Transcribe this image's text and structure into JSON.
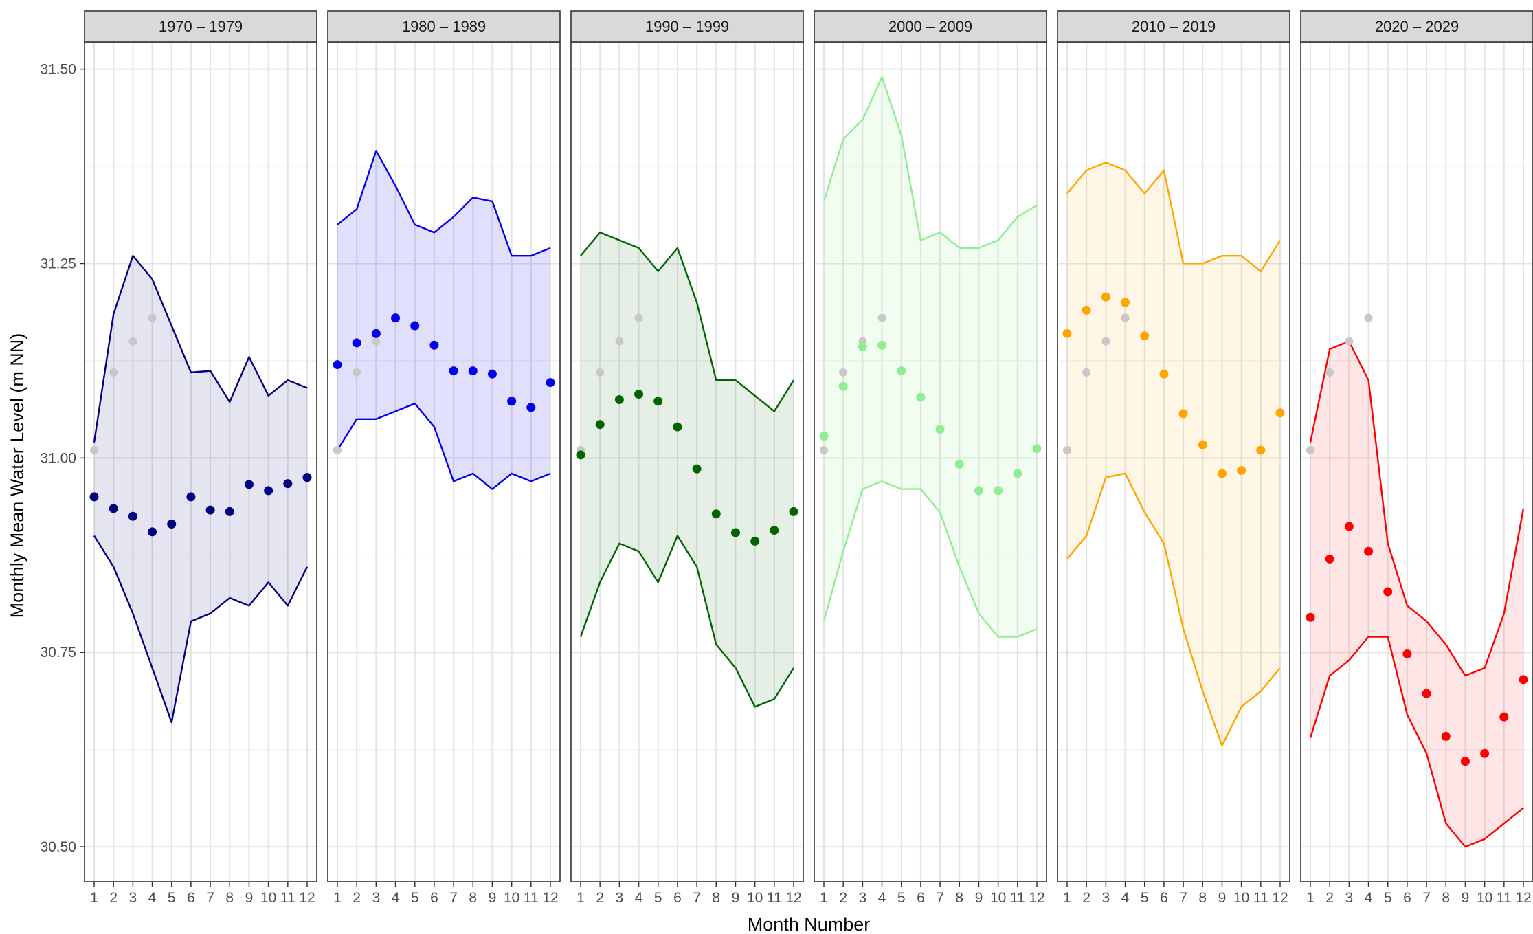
{
  "chart_data": {
    "type": "line",
    "xlabel": "Month Number",
    "ylabel": "Monthly Mean Water Level (m NN)",
    "ylim": [
      30.455,
      31.535
    ],
    "y_ticks": [
      30.5,
      30.75,
      31.0,
      31.25,
      31.5
    ],
    "y_tick_labels": [
      "30.50",
      "30.75",
      "31.00",
      "31.25",
      "31.50"
    ],
    "x_ticks": [
      1,
      2,
      3,
      4,
      5,
      6,
      7,
      8,
      9,
      10,
      11,
      12
    ],
    "x_tick_labels": [
      "1",
      "2",
      "3",
      "4",
      "5",
      "6",
      "7",
      "8",
      "9",
      "10",
      "11",
      "12"
    ],
    "grid": true,
    "legend": "none",
    "reference_series": {
      "color": "#c8c8c8",
      "values": [
        31.01,
        31.11,
        31.15,
        31.18,
        null,
        null,
        null,
        null,
        null,
        null,
        null,
        null
      ]
    },
    "panels": [
      {
        "label": "1970 – 1979",
        "color": "#000080",
        "fill_opacity": 0.1,
        "mean": [
          30.95,
          30.935,
          30.925,
          30.905,
          30.915,
          30.95,
          30.933,
          30.931,
          30.966,
          30.958,
          30.967,
          30.975
        ],
        "upper": [
          31.02,
          31.185,
          31.26,
          31.23,
          31.17,
          31.11,
          31.112,
          31.072,
          31.13,
          31.08,
          31.1,
          31.09
        ],
        "lower": [
          30.9,
          30.86,
          30.8,
          30.73,
          30.66,
          30.79,
          30.8,
          30.82,
          30.81,
          30.84,
          30.81,
          30.86
        ]
      },
      {
        "label": "1980 – 1989",
        "color": "#0000ee",
        "fill_opacity": 0.12,
        "mean": [
          31.12,
          31.148,
          31.16,
          31.18,
          31.17,
          31.145,
          31.112,
          31.112,
          31.108,
          31.073,
          31.065,
          31.097
        ],
        "upper": [
          31.3,
          31.32,
          31.395,
          31.35,
          31.3,
          31.29,
          31.31,
          31.335,
          31.33,
          31.26,
          31.26,
          31.27
        ],
        "lower": [
          31.01,
          31.05,
          31.05,
          31.06,
          31.07,
          31.04,
          30.97,
          30.98,
          30.96,
          30.98,
          30.97,
          30.98
        ]
      },
      {
        "label": "1990 – 1999",
        "color": "#006400",
        "fill_opacity": 0.1,
        "mean": [
          31.004,
          31.043,
          31.075,
          31.082,
          31.073,
          31.04,
          30.986,
          30.928,
          30.904,
          30.893,
          30.907,
          30.931
        ],
        "upper": [
          31.26,
          31.29,
          31.28,
          31.27,
          31.24,
          31.27,
          31.2,
          31.1,
          31.1,
          31.08,
          31.06,
          31.1
        ],
        "lower": [
          30.77,
          30.84,
          30.89,
          30.88,
          30.84,
          30.9,
          30.86,
          30.76,
          30.73,
          30.68,
          30.69,
          30.73
        ]
      },
      {
        "label": "2000 – 2009",
        "color": "#90ee90",
        "fill_opacity": 0.12,
        "mean": [
          31.028,
          31.092,
          31.143,
          31.145,
          31.112,
          31.078,
          31.037,
          30.992,
          30.958,
          30.958,
          30.98,
          31.012
        ],
        "upper": [
          31.33,
          31.41,
          31.435,
          31.49,
          31.415,
          31.28,
          31.29,
          31.27,
          31.27,
          31.28,
          31.31,
          31.325
        ],
        "lower": [
          30.79,
          30.88,
          30.96,
          30.97,
          30.96,
          30.96,
          30.93,
          30.86,
          30.8,
          30.77,
          30.77,
          30.78
        ]
      },
      {
        "label": "2010 – 2019",
        "color": "#ffa500",
        "fill_opacity": 0.1,
        "mean": [
          31.16,
          31.19,
          31.207,
          31.2,
          31.157,
          31.108,
          31.057,
          31.017,
          30.98,
          30.984,
          31.01,
          31.058
        ],
        "upper": [
          31.34,
          31.37,
          31.38,
          31.37,
          31.34,
          31.37,
          31.25,
          31.25,
          31.26,
          31.26,
          31.24,
          31.28
        ],
        "lower": [
          30.87,
          30.9,
          30.975,
          30.98,
          30.93,
          30.89,
          30.78,
          30.7,
          30.63,
          30.68,
          30.7,
          30.73
        ]
      },
      {
        "label": "2020 – 2029",
        "color": "#ff0000",
        "fill_opacity": 0.1,
        "mean": [
          30.795,
          30.87,
          30.912,
          30.88,
          30.828,
          30.748,
          30.697,
          30.642,
          30.61,
          30.62,
          30.667,
          30.715
        ],
        "upper": [
          31.02,
          31.14,
          31.15,
          31.1,
          30.89,
          30.81,
          30.79,
          30.76,
          30.72,
          30.73,
          30.8,
          30.935
        ],
        "lower": [
          30.64,
          30.72,
          30.74,
          30.77,
          30.77,
          30.67,
          30.62,
          30.53,
          30.5,
          30.51,
          30.53,
          30.55
        ]
      }
    ]
  }
}
